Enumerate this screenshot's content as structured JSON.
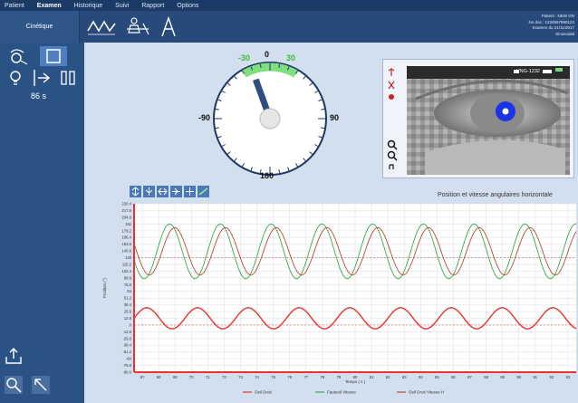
{
  "menu": {
    "items": [
      {
        "label": "Patient",
        "active": false
      },
      {
        "label": "Examen",
        "active": true
      },
      {
        "label": "Historique",
        "active": false
      },
      {
        "label": "Suivi",
        "active": false
      },
      {
        "label": "Rapport",
        "active": false
      },
      {
        "label": "Options",
        "active": false
      }
    ]
  },
  "toolbar": {
    "mode_label": "Cinétique",
    "tools": [
      "wave-tool-icon",
      "patient-body-icon",
      "graph-cursor-icon"
    ]
  },
  "patient_info": {
    "line1": "Patient : NEW ON",
    "line2": "No dos : 1234567890123",
    "line3": "Examen du 21/11/2017",
    "line4": "Sinusoidal"
  },
  "sidebar": {
    "timer": "86 s"
  },
  "dial": {
    "labels": {
      "top": "0",
      "bottom": "180",
      "left": "-90",
      "right": "90",
      "green_left": "-30",
      "green_right": "30"
    },
    "needle_angle_deg": -20,
    "green_range": [
      -30,
      30
    ]
  },
  "eye_view": {
    "tag": "VNG-1232"
  },
  "chart_data": {
    "type": "line",
    "title": "Position et vitesse angulaires horizontale",
    "xlabel": "Temps ( s )",
    "ylabel": "Position (°)",
    "xlim": [
      66.5,
      93.5
    ],
    "ylim": [
      -89.6,
      230.4
    ],
    "x_ticks": [
      "67",
      "68",
      "69",
      "70",
      "71",
      "72",
      "73",
      "74",
      "75",
      "76",
      "77",
      "78",
      "79",
      "80",
      "81",
      "82",
      "83",
      "84",
      "85",
      "86",
      "87",
      "88",
      "89",
      "90",
      "91",
      "92",
      "93"
    ],
    "y_ticks": [
      "230.4",
      "217.6",
      "204.8",
      "192",
      "179.2",
      "166.4",
      "153.6",
      "140.8",
      "128",
      "115.2",
      "102.4",
      "89.6",
      "76.8",
      "64",
      "51.2",
      "38.4",
      "25.6",
      "12.8",
      "0",
      "-12.8",
      "-25.6",
      "-38.4",
      "-51.2",
      "-64",
      "-76.8",
      "-89.6"
    ],
    "series": [
      {
        "name": "Oeil Droit",
        "color": "#e8322d",
        "kind": "sine",
        "offset": 12.8,
        "amplitude": 20,
        "period": 3.1,
        "phase": 0.0
      },
      {
        "name": "Fauteuil Vitesse",
        "color": "#3aa84a",
        "kind": "sine",
        "offset": 140,
        "amplitude": 52,
        "period": 3.1,
        "phase": 0.55
      },
      {
        "name": "Oeil Droit Vitesse H",
        "color": "#b54a3a",
        "kind": "sine",
        "offset": 140,
        "amplitude": 45,
        "period": 3.1,
        "phase": 0.45
      }
    ]
  }
}
